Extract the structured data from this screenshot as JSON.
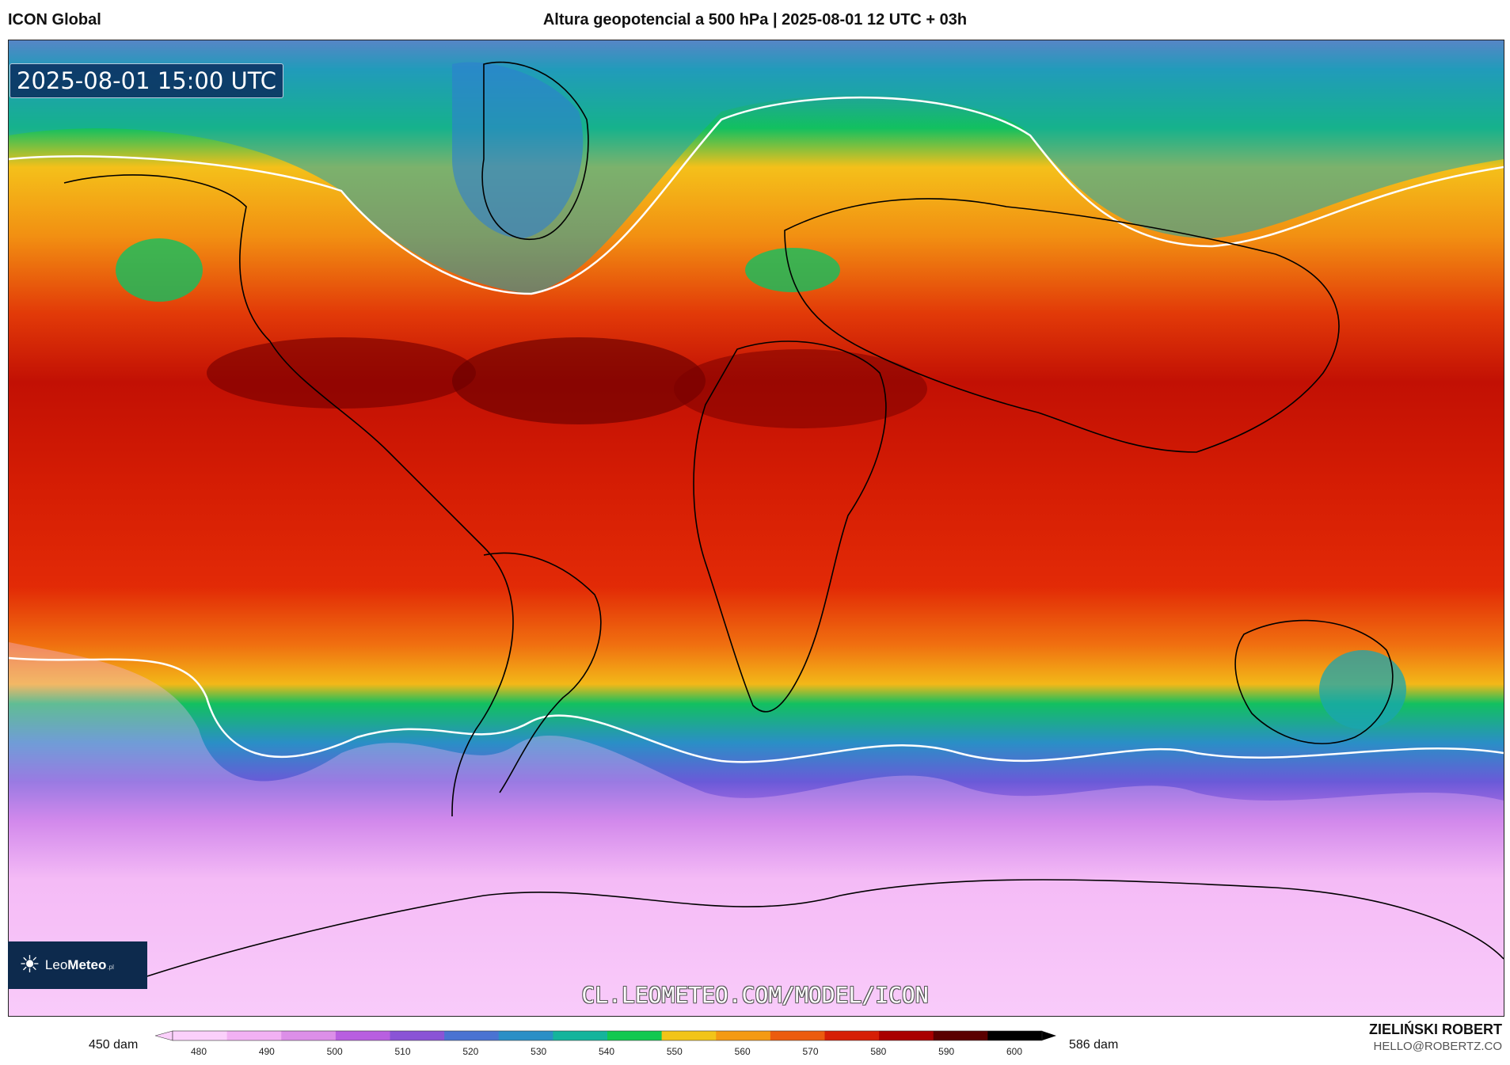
{
  "header": {
    "model": "ICON Global",
    "title": "Altura geopotencial a 500 hPa | 2025-08-01 12 UTC + 03h"
  },
  "map": {
    "timestamp": "2025-08-01 15:00 UTC",
    "watermark": "CL.LEOMETEO.COM/MODEL/ICON",
    "logo": {
      "brand_light": "Leo",
      "brand_bold": "Meteo",
      "tld": ".pl"
    }
  },
  "colorbar": {
    "min_label": "450 dam",
    "max_label": "586 dam",
    "ticks": [
      "480",
      "490",
      "500",
      "510",
      "520",
      "530",
      "540",
      "550",
      "560",
      "570",
      "580",
      "590",
      "600"
    ],
    "colors": [
      "#fbd0fb",
      "#f2b1f3",
      "#dc8fe8",
      "#b85fe0",
      "#8a54d6",
      "#4a73d2",
      "#2a8fc6",
      "#14b49c",
      "#11c850",
      "#f2c418",
      "#f49a12",
      "#ec5c0e",
      "#d61f06",
      "#a90000",
      "#5a0000",
      "#000000"
    ]
  },
  "credits": {
    "author": "ZIELIŃSKI ROBERT",
    "email": "HELLO@ROBERTZ.CO"
  }
}
